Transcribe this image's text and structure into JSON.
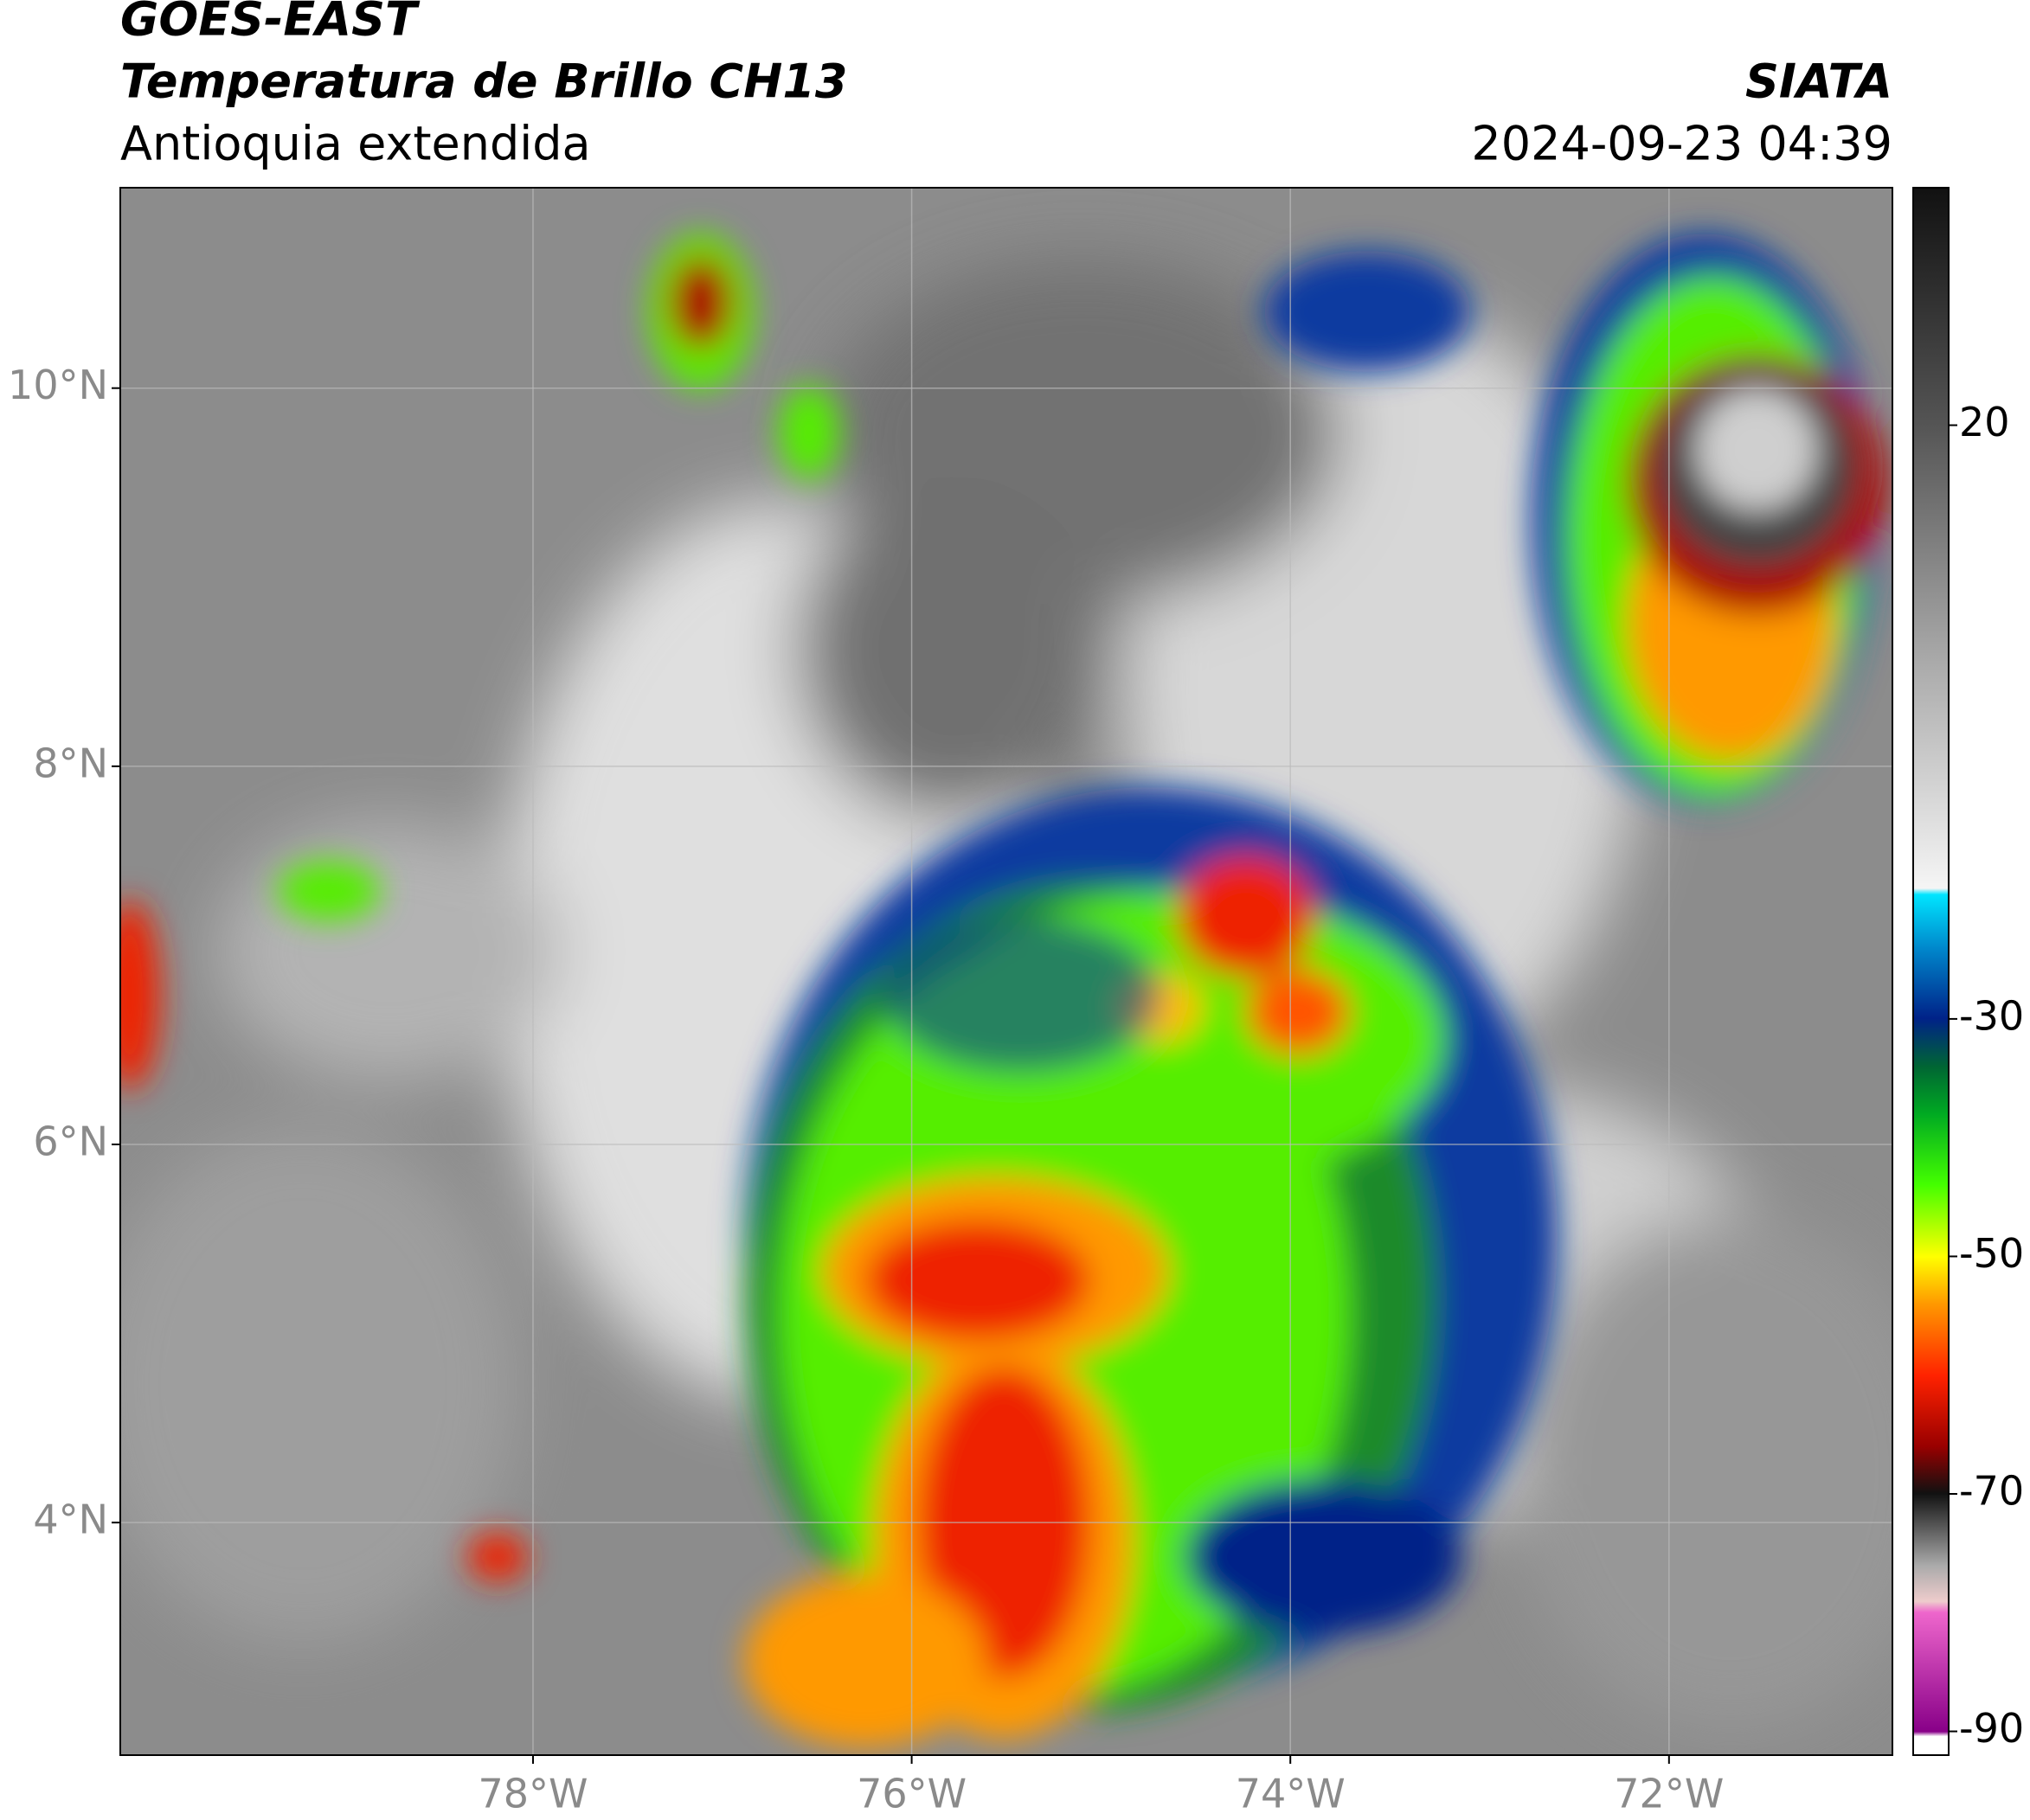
{
  "header": {
    "title": "GOES-EAST",
    "subtitle": "Temperatura de Brillo CH13",
    "region": "Antioquia extendida",
    "source": "SIATA",
    "datetime": "2024-09-23 04:39"
  },
  "map": {
    "xlim": [
      -80.18,
      -70.82
    ],
    "ylim": [
      2.77,
      11.06
    ],
    "xticks": [
      {
        "value": -78,
        "label": "78°W"
      },
      {
        "value": -76,
        "label": "76°W"
      },
      {
        "value": -74,
        "label": "74°W"
      },
      {
        "value": -72,
        "label": "72°W"
      }
    ],
    "yticks": [
      {
        "value": 4,
        "label": "4°N"
      },
      {
        "value": 6,
        "label": "6°N"
      },
      {
        "value": 8,
        "label": "8°N"
      },
      {
        "value": 10,
        "label": "10°N"
      }
    ],
    "grid": true
  },
  "colorbar": {
    "clim": [
      -92,
      40
    ],
    "ticks": [
      20,
      -30,
      -50,
      -70,
      -90
    ]
  }
}
